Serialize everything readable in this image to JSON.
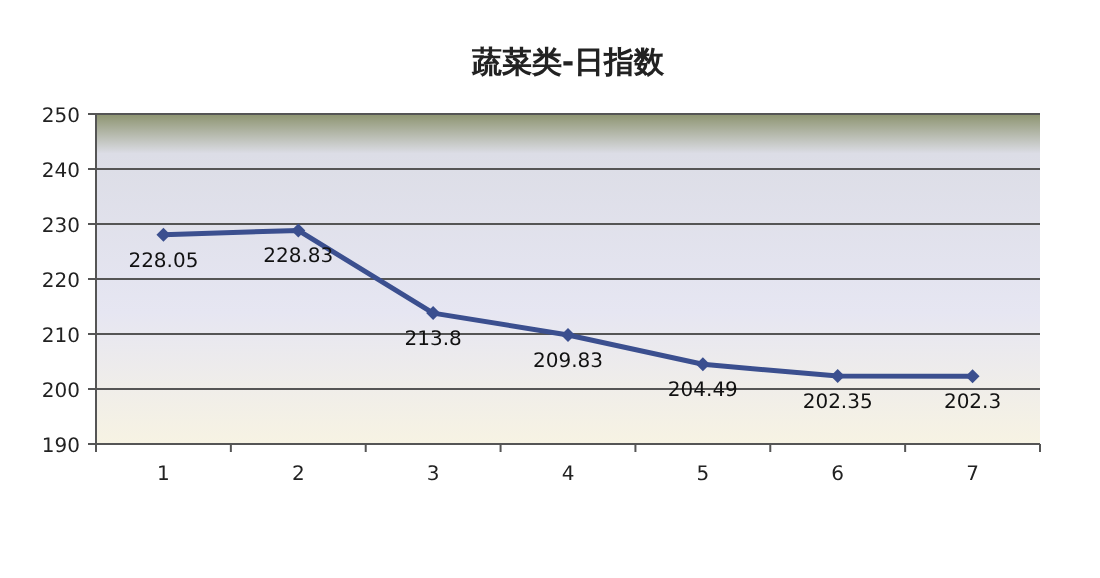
{
  "chart_data": {
    "type": "line",
    "title": "蔬菜类-日指数",
    "categories": [
      "1",
      "2",
      "3",
      "4",
      "5",
      "6",
      "7"
    ],
    "series": [
      {
        "color": "#3b4f8f",
        "values": [
          228.05,
          228.83,
          213.8,
          209.83,
          204.49,
          202.35,
          202.3
        ]
      }
    ],
    "ylim": [
      190,
      250
    ],
    "yticks": [
      190,
      200,
      210,
      220,
      230,
      240,
      250
    ],
    "grid": "y",
    "marker": "diamond",
    "data_labels": true,
    "line_style": "solid"
  }
}
